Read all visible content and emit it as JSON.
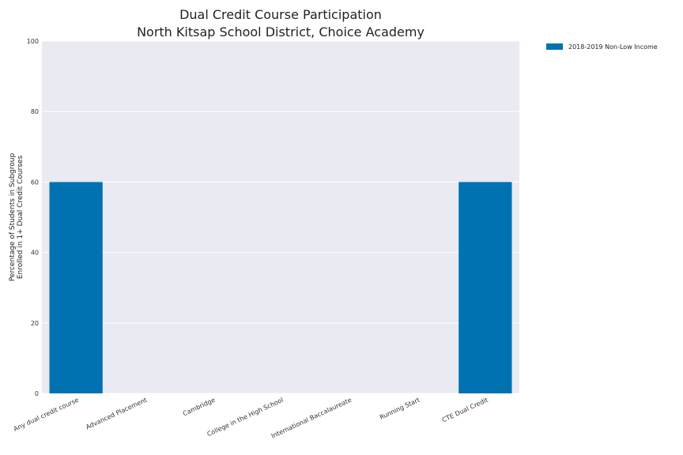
{
  "chart_data": {
    "type": "bar",
    "title": "Dual Credit Course Participation\nNorth Kitsap School District, Choice Academy",
    "title_lines": [
      "Dual Credit Course Participation",
      "North Kitsap School District, Choice Academy"
    ],
    "xlabel": "",
    "ylabel": "Percentage of Students in Subgroup\nEnrolled in 1+ Dual Credit Courses",
    "ylabel_lines": [
      "Percentage of Students in Subgroup",
      "Enrolled in 1+ Dual Credit Courses"
    ],
    "ylim": [
      0,
      100
    ],
    "yticks": [
      "0",
      "20",
      "40",
      "60",
      "80",
      "100"
    ],
    "grid": true,
    "legend_placement": "top-right outside",
    "categories": [
      "Any dual credit course",
      "Advanced Placement",
      "Cambridge",
      "College in the High School",
      "International Baccalaureate",
      "Running Start",
      "CTE Dual Credit"
    ],
    "series": [
      {
        "name": "2018-2019 Non-Low Income",
        "color": "#0072b2",
        "values": [
          60,
          0,
          0,
          0,
          0,
          0,
          60
        ]
      }
    ]
  },
  "colors": {
    "plot_background": "#e9eaf2",
    "grid": "#ffffff",
    "bar": "#0072b2"
  }
}
